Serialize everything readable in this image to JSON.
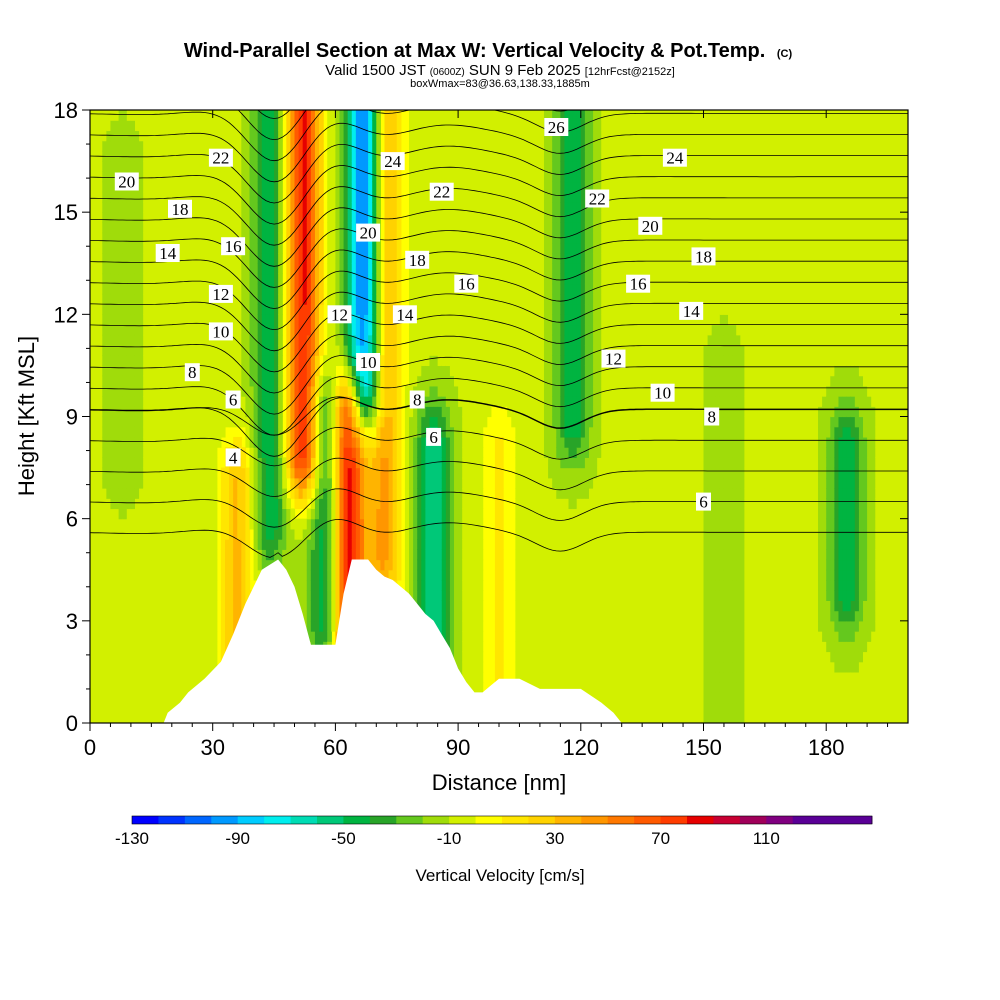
{
  "title": {
    "main": "Wind-Parallel Section at Max W: Vertical Velocity & Pot.Temp.",
    "copyright": "(C)",
    "valid_prefix": "Valid 1500 JST",
    "valid_utc": "(0600Z)",
    "valid_date": "SUN 9 Feb 2025",
    "fcst": "[12hrFcst@2152z]",
    "box": "boxWmax=83@36.63,138.33,1885m"
  },
  "chart_data": {
    "type": "heatmap",
    "xlabel": "Distance [nm]",
    "ylabel": "Height [Kft MSL]",
    "xlim": [
      0,
      200
    ],
    "ylim": [
      0,
      18
    ],
    "xticks": [
      0,
      30,
      60,
      90,
      120,
      150,
      180
    ],
    "yticks": [
      0,
      3,
      6,
      9,
      12,
      15,
      18
    ],
    "colorbar": {
      "label": "Vertical Velocity [cm/s]",
      "min": -130,
      "max": 150,
      "step": 10,
      "ticks": [
        -130,
        -90,
        -50,
        -10,
        30,
        70,
        110
      ],
      "colors": [
        "#0000ff",
        "#0033ff",
        "#0066ff",
        "#0099ff",
        "#00ccff",
        "#00eeee",
        "#00dcb4",
        "#00c878",
        "#00b441",
        "#28a428",
        "#64c81e",
        "#a0dc0a",
        "#d2f000",
        "#ffff00",
        "#ffe600",
        "#ffd200",
        "#ffb400",
        "#ff9600",
        "#ff7800",
        "#ff5a00",
        "#ff3c00",
        "#e60000",
        "#c80032",
        "#a0005a",
        "#800080",
        "#5a0096"
      ]
    },
    "w_features": [
      {
        "x": 8,
        "zlow": 8,
        "zhigh": 16,
        "w": -10
      },
      {
        "x": 36,
        "zlow": 0,
        "zhigh": 7,
        "w": 40
      },
      {
        "x": 44,
        "zlow": 6,
        "zhigh": 18,
        "w": -40
      },
      {
        "x": 52,
        "zlow": 8,
        "zhigh": 18,
        "w": 90
      },
      {
        "x": 58,
        "zlow": 3,
        "zhigh": 9,
        "w": -50
      },
      {
        "x": 63,
        "zlow": 2,
        "zhigh": 9,
        "w": 100
      },
      {
        "x": 67,
        "zlow": 10,
        "zhigh": 18,
        "w": -100
      },
      {
        "x": 72,
        "zlow": 5,
        "zhigh": 18,
        "w": 50
      },
      {
        "x": 84,
        "zlow": 1,
        "zhigh": 8,
        "w": -50
      },
      {
        "x": 100,
        "zlow": 1,
        "zhigh": 8,
        "w": 20
      },
      {
        "x": 118,
        "zlow": 9,
        "zhigh": 18,
        "w": -40
      },
      {
        "x": 155,
        "zlow": 0,
        "zhigh": 10,
        "w": -10
      },
      {
        "x": 185,
        "zlow": 4,
        "zhigh": 8,
        "w": -40
      }
    ],
    "terrain": {
      "x": [
        0,
        18,
        19,
        22,
        24,
        28,
        32,
        35,
        38,
        40,
        42,
        46,
        48,
        50,
        52,
        54,
        56,
        58,
        60,
        62,
        64,
        66,
        68,
        70,
        72,
        74,
        76,
        78,
        80,
        82,
        84,
        86,
        88,
        90,
        92,
        94,
        96,
        98,
        100,
        105,
        110,
        115,
        120,
        125,
        128,
        130,
        200
      ],
      "height": [
        0,
        0,
        0.3,
        0.6,
        0.9,
        1.3,
        1.8,
        2.6,
        3.5,
        4.0,
        4.5,
        4.8,
        4.5,
        4.0,
        3.2,
        2.3,
        2.3,
        2.3,
        2.3,
        3.8,
        4.8,
        4.8,
        4.8,
        4.5,
        4.3,
        4.2,
        4.0,
        3.8,
        3.5,
        3.2,
        3.0,
        2.6,
        2.2,
        1.6,
        1.2,
        0.9,
        0.9,
        1.1,
        1.3,
        1.3,
        1.0,
        1.0,
        1.0,
        0.6,
        0.3,
        0,
        0
      ]
    },
    "theta_labels": [
      {
        "text": "20",
        "x": 9,
        "y": 15.9
      },
      {
        "text": "22",
        "x": 32,
        "y": 16.6
      },
      {
        "text": "18",
        "x": 22,
        "y": 15.1
      },
      {
        "text": "16",
        "x": 35,
        "y": 14.0
      },
      {
        "text": "14",
        "x": 19,
        "y": 13.8
      },
      {
        "text": "12",
        "x": 32,
        "y": 12.6
      },
      {
        "text": "10",
        "x": 32,
        "y": 11.5
      },
      {
        "text": "8",
        "x": 25,
        "y": 10.3
      },
      {
        "text": "6",
        "x": 35,
        "y": 9.5
      },
      {
        "text": "4",
        "x": 35,
        "y": 7.8
      },
      {
        "text": "24",
        "x": 74,
        "y": 16.5
      },
      {
        "text": "22",
        "x": 86,
        "y": 15.6
      },
      {
        "text": "20",
        "x": 68,
        "y": 14.4
      },
      {
        "text": "18",
        "x": 80,
        "y": 13.6
      },
      {
        "text": "16",
        "x": 92,
        "y": 12.9
      },
      {
        "text": "12",
        "x": 61,
        "y": 12.0
      },
      {
        "text": "14",
        "x": 77,
        "y": 12.0
      },
      {
        "text": "10",
        "x": 68,
        "y": 10.6
      },
      {
        "text": "8",
        "x": 80,
        "y": 9.5
      },
      {
        "text": "6",
        "x": 84,
        "y": 8.4
      },
      {
        "text": "26",
        "x": 114,
        "y": 17.5
      },
      {
        "text": "24",
        "x": 143,
        "y": 16.6
      },
      {
        "text": "22",
        "x": 124,
        "y": 15.4
      },
      {
        "text": "20",
        "x": 137,
        "y": 14.6
      },
      {
        "text": "18",
        "x": 150,
        "y": 13.7
      },
      {
        "text": "16",
        "x": 134,
        "y": 12.9
      },
      {
        "text": "14",
        "x": 147,
        "y": 12.1
      },
      {
        "text": "12",
        "x": 128,
        "y": 10.7
      },
      {
        "text": "10",
        "x": 140,
        "y": 9.7
      },
      {
        "text": "8",
        "x": 152,
        "y": 9.0
      },
      {
        "text": "6",
        "x": 150,
        "y": 6.5
      }
    ]
  }
}
